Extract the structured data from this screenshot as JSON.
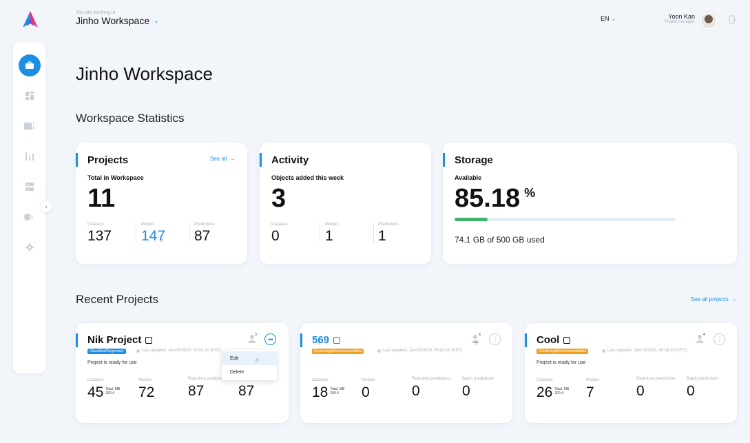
{
  "topbar": {
    "caption": "You are working in",
    "workspace": "Jinho Workspace",
    "lang": "EN",
    "user_name": "Yoon Kan",
    "user_role": "Project manager"
  },
  "page_title": "Jinho Workspace",
  "stats_title": "Workspace Statistics",
  "projects_card": {
    "title": "Projects",
    "see_all": "See all",
    "sub": "Total in Workspace",
    "total": "11",
    "stats": [
      {
        "label": "Datasets",
        "value": "137"
      },
      {
        "label": "Models",
        "value": "147"
      },
      {
        "label": "Predictions",
        "value": "87"
      }
    ]
  },
  "activity_card": {
    "title": "Activity",
    "sub": "Objects added this week",
    "total": "3",
    "stats": [
      {
        "label": "Datasets",
        "value": "0"
      },
      {
        "label": "Models",
        "value": "1"
      },
      {
        "label": "Predictions",
        "value": "1"
      }
    ]
  },
  "storage_card": {
    "title": "Storage",
    "sub": "Available",
    "value": "85.18",
    "unit": "%",
    "used_fraction": 0.1482,
    "used_text": "74.1 GB of 500 GB used"
  },
  "recent_title": "Recent Projects",
  "see_all_projects": "See all projects",
  "projects": [
    {
      "name": "Nik Project",
      "tag": "Classifier/Regressor",
      "updated": "Last updated: Jan/15/2020, 00:04:20 (KST)",
      "status": "Project is ready for use",
      "shares": "3",
      "datasets_label": "Datasets",
      "datasets": "45",
      "total_label": "Total, MB",
      "total": "200.4",
      "models_label": "Models",
      "models": "72",
      "rt_label": "Real-time predictions",
      "rt": "87",
      "batch_label": "Batch predictions",
      "batch": "87"
    },
    {
      "name": "569",
      "tag": "Clustering/Recommendation",
      "updated": "Last updated: Jan/15/2020, 00:04:20 (KST)",
      "status": "",
      "shares": "6",
      "datasets_label": "Datasets",
      "datasets": "18",
      "total_label": "Total, MB",
      "total": "200.4",
      "models_label": "Models",
      "models": "0",
      "rt_label": "Real-time predictions",
      "rt": "0",
      "batch_label": "Batch predictions",
      "batch": "0"
    },
    {
      "name": "Cool",
      "tag": "Clustering/Recommendation",
      "updated": "Last updated: Jan/15/2020, 00:04:20 (KST)",
      "status": "Project is ready for use",
      "shares": "4",
      "datasets_label": "Datasets",
      "datasets": "26",
      "total_label": "Total, MB",
      "total": "200.4",
      "models_label": "Models",
      "models": "7",
      "rt_label": "Real-time predictions",
      "rt": "0",
      "batch_label": "Batch predictions",
      "batch": "0"
    }
  ],
  "menu": {
    "edit": "Edit",
    "delete": "Delete"
  },
  "colors": {
    "accent": "#1a8fe3",
    "green": "#3cb46b",
    "orange": "#f0a020"
  }
}
